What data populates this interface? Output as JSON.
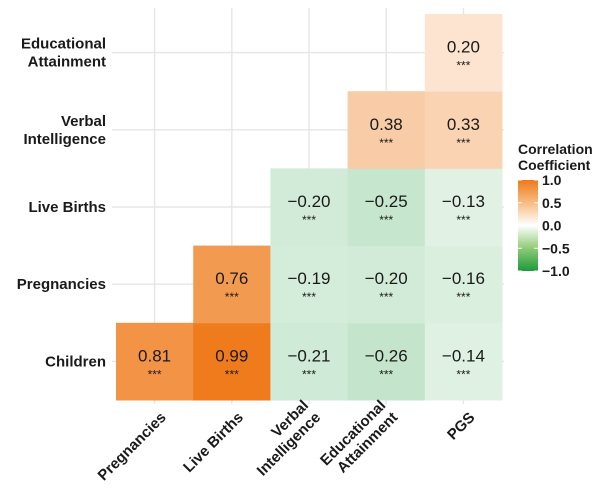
{
  "chart_data": {
    "type": "heatmap",
    "title": "",
    "xlabel": "",
    "ylabel": "",
    "x_categories": [
      "Pregnancies",
      "Live Births",
      "Verbal Intelligence",
      "Educational Attainment",
      "PGS"
    ],
    "y_categories": [
      "Children",
      "Pregnancies",
      "Live Births",
      "Verbal Intelligence",
      "Educational Attainment"
    ],
    "x_tick_lines": [
      [
        "Pregnancies"
      ],
      [
        "Live Births"
      ],
      [
        "Verbal",
        "Intelligence"
      ],
      [
        "Educational",
        "Attainment"
      ],
      [
        "PGS"
      ]
    ],
    "y_tick_lines": [
      [
        "Children"
      ],
      [
        "Pregnancies"
      ],
      [
        "Live Births"
      ],
      [
        "Verbal",
        "Intelligence"
      ],
      [
        "Educational",
        "Attainment"
      ]
    ],
    "cells": [
      {
        "row": "Children",
        "col": "Pregnancies",
        "value": 0.81,
        "label": "0.81",
        "sig": "***"
      },
      {
        "row": "Children",
        "col": "Live Births",
        "value": 0.99,
        "label": "0.99",
        "sig": "***"
      },
      {
        "row": "Children",
        "col": "Verbal Intelligence",
        "value": -0.21,
        "label": "−0.21",
        "sig": "***"
      },
      {
        "row": "Children",
        "col": "Educational Attainment",
        "value": -0.26,
        "label": "−0.26",
        "sig": "***"
      },
      {
        "row": "Children",
        "col": "PGS",
        "value": -0.14,
        "label": "−0.14",
        "sig": "***"
      },
      {
        "row": "Pregnancies",
        "col": "Live Births",
        "value": 0.76,
        "label": "0.76",
        "sig": "***"
      },
      {
        "row": "Pregnancies",
        "col": "Verbal Intelligence",
        "value": -0.19,
        "label": "−0.19",
        "sig": "***"
      },
      {
        "row": "Pregnancies",
        "col": "Educational Attainment",
        "value": -0.2,
        "label": "−0.20",
        "sig": "***"
      },
      {
        "row": "Pregnancies",
        "col": "PGS",
        "value": -0.16,
        "label": "−0.16",
        "sig": "***"
      },
      {
        "row": "Live Births",
        "col": "Verbal Intelligence",
        "value": -0.2,
        "label": "−0.20",
        "sig": "***"
      },
      {
        "row": "Live Births",
        "col": "Educational Attainment",
        "value": -0.25,
        "label": "−0.25",
        "sig": "***"
      },
      {
        "row": "Live Births",
        "col": "PGS",
        "value": -0.13,
        "label": "−0.13",
        "sig": "***"
      },
      {
        "row": "Verbal Intelligence",
        "col": "Educational Attainment",
        "value": 0.38,
        "label": "0.38",
        "sig": "***"
      },
      {
        "row": "Verbal Intelligence",
        "col": "PGS",
        "value": 0.33,
        "label": "0.33",
        "sig": "***"
      },
      {
        "row": "Educational Attainment",
        "col": "PGS",
        "value": 0.2,
        "label": "0.20",
        "sig": "***"
      }
    ],
    "legend": {
      "title_lines": [
        "Correlation",
        "Coefficient"
      ],
      "ticks": [
        1.0,
        0.5,
        0.0,
        -0.5,
        -1.0
      ],
      "tick_labels": [
        "1.0",
        "0.5",
        "0.0",
        "−0.5",
        "−1.0"
      ],
      "range": [
        -1,
        1
      ],
      "placement": "right"
    },
    "colors": {
      "positive": "#ef7a1a",
      "mid": "#ffffff",
      "negative": "#1c9a3a",
      "grid": "#e6e6e6"
    },
    "grid": true
  }
}
